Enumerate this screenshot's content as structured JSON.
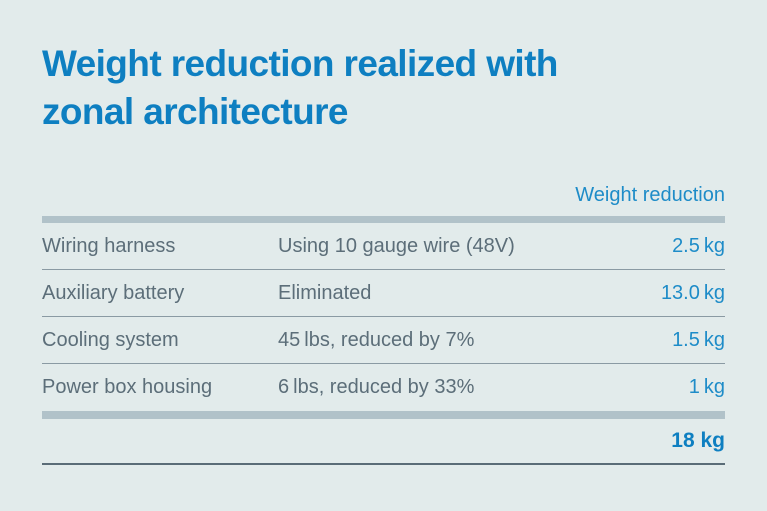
{
  "header": {
    "title_lines": [
      "Weight reduction realized with",
      "zonal architecture"
    ]
  },
  "table": {
    "value_column_header": "Weight reduction",
    "rows": [
      {
        "item": "Wiring harness",
        "detail": "Using 10 gauge wire (48V)",
        "value": "2.5 kg"
      },
      {
        "item": "Auxiliary battery",
        "detail": "Eliminated",
        "value": "13.0 kg"
      },
      {
        "item": "Cooling system",
        "detail": "45 lbs, reduced by 7%",
        "value": "1.5 kg"
      },
      {
        "item": "Power box housing",
        "detail": "6 lbs, reduced by 33%",
        "value": "1 kg"
      }
    ],
    "total": "18 kg"
  },
  "chart_data": {
    "type": "table",
    "title": "Weight reduction realized with zonal architecture",
    "columns": [
      "",
      "",
      "Weight reduction"
    ],
    "rows": [
      [
        "Wiring harness",
        "Using 10 gauge wire (48V)",
        "2.5 kg"
      ],
      [
        "Auxiliary battery",
        "Eliminated",
        "13.0 kg"
      ],
      [
        "Cooling system",
        "45 lbs, reduced by 7%",
        "1.5 kg"
      ],
      [
        "Power box housing",
        "6 lbs, reduced by 33%",
        "1 kg"
      ]
    ],
    "values_kg": [
      2.5,
      13.0,
      1.5,
      1
    ],
    "total_kg": 18,
    "total_label": "18 kg"
  },
  "colors": {
    "background": "#e2ebeb",
    "title_blue": "#0e7fc1",
    "value_blue": "#1e8cc8",
    "body_text": "#5c6e79",
    "thick_bar": "#b1c2c9",
    "row_separator": "#8a9aa3",
    "bottom_line": "#5a6c77"
  }
}
